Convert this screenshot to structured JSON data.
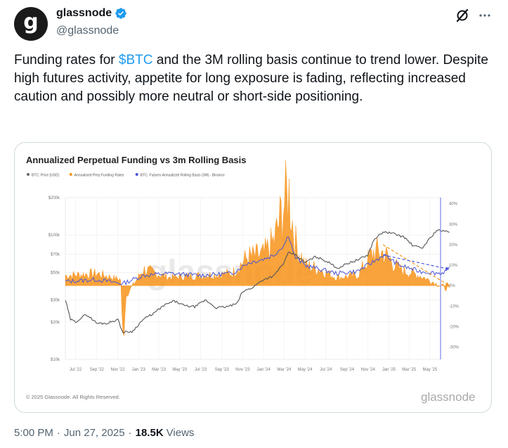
{
  "author": {
    "avatar_letter": "g",
    "display_name": "glassnode",
    "handle": "@glassnode",
    "verified": true
  },
  "icons": {
    "grok": "grok-icon",
    "more": "more-icon",
    "verified": "verified-badge-icon"
  },
  "tweet": {
    "text_before": "Funding rates for ",
    "cashtag": "$BTC",
    "text_after": " and the 3M rolling basis continue to trend lower. Despite high futures activity, appetite for long exposure is fading, reflecting increased caution and possibly more neutral or short-side positioning."
  },
  "media": {
    "copyright": "© 2025 Glassnode. All Rights Reserved.",
    "brand": "glassnode",
    "watermark": "glassnode"
  },
  "chart_data": {
    "type": "line",
    "title": "Annualized Perpetual Funding vs 3m Rolling Basis",
    "legend": [
      {
        "name": "BTC: Price [USD]",
        "color": "#6b6b6b"
      },
      {
        "name": "Annualised Perp Funding Rates",
        "color": "#f7931a"
      },
      {
        "name": "BTC: Futures Annualized Rolling Basis (3M) - Binance",
        "color": "#4a55d8"
      }
    ],
    "legend_position": "top-left",
    "y_left": {
      "scale": "log",
      "ticks": [
        "$200k",
        "$100k",
        "$70k",
        "$50k",
        "$30k",
        "$20k",
        "$10k"
      ],
      "range": [
        10000,
        200000
      ]
    },
    "y_right": {
      "ticks": [
        "40%",
        "30%",
        "20%",
        "10%",
        "0%",
        "-10%",
        "-20%",
        "-30%"
      ],
      "range": [
        -36,
        43
      ]
    },
    "x_ticks": [
      "Jul '22",
      "Sep '22",
      "Nov '22",
      "Jan '23",
      "Mar '23",
      "May '23",
      "Jul '23",
      "Sep '23",
      "Nov '23",
      "Jan '24",
      "Mar '24",
      "May '24",
      "Jul '24",
      "Sep '24",
      "Nov '24",
      "Jan '25",
      "Mar '25",
      "May '25"
    ],
    "x_range": [
      "2022-06",
      "2025-06"
    ],
    "grid": true,
    "series": [
      {
        "name": "BTC: Price [USD]",
        "color": "#555555",
        "x": [
          "2022-06-01",
          "2022-06-15",
          "2022-07-01",
          "2022-08-01",
          "2022-09-01",
          "2022-10-01",
          "2022-11-01",
          "2022-11-15",
          "2022-12-15",
          "2023-01-15",
          "2023-02-15",
          "2023-03-15",
          "2023-04-15",
          "2023-05-15",
          "2023-06-15",
          "2023-07-15",
          "2023-08-15",
          "2023-09-15",
          "2023-10-15",
          "2023-11-01",
          "2023-12-01",
          "2024-01-01",
          "2024-02-01",
          "2024-03-01",
          "2024-03-14",
          "2024-04-01",
          "2024-05-01",
          "2024-06-01",
          "2024-07-01",
          "2024-08-05",
          "2024-09-01",
          "2024-10-01",
          "2024-11-01",
          "2024-11-20",
          "2024-12-17",
          "2025-01-20",
          "2025-02-15",
          "2025-03-10",
          "2025-04-08",
          "2025-05-01",
          "2025-05-22",
          "2025-06-10",
          "2025-06-27"
        ],
        "values": [
          30000,
          21000,
          20000,
          23000,
          19500,
          19500,
          21000,
          16500,
          16800,
          21000,
          23500,
          27000,
          29500,
          27000,
          26500,
          30000,
          26000,
          26500,
          28000,
          35000,
          38000,
          44000,
          47000,
          60000,
          72000,
          70000,
          60000,
          67000,
          62000,
          54000,
          59000,
          63000,
          69000,
          93000,
          106000,
          102000,
          96000,
          83000,
          78000,
          94000,
          110000,
          107000,
          107000
        ]
      },
      {
        "name": "Annualised Perp Funding Rates",
        "color": "#f7931a",
        "x": [
          "2022-06-01",
          "2022-09-01",
          "2022-11-10",
          "2022-11-15",
          "2022-11-25",
          "2023-01-15",
          "2023-04-01",
          "2023-07-01",
          "2023-10-01",
          "2023-11-15",
          "2024-01-01",
          "2024-02-01",
          "2024-03-01",
          "2024-03-14",
          "2024-04-01",
          "2024-05-01",
          "2024-06-15",
          "2024-08-01",
          "2024-10-01",
          "2024-11-20",
          "2024-12-17",
          "2025-02-01",
          "2025-04-01",
          "2025-06-27"
        ],
        "values": [
          5,
          6,
          3,
          -30,
          -5,
          8,
          4,
          5,
          6,
          14,
          15,
          22,
          40,
          47,
          22,
          10,
          8,
          4,
          5,
          17,
          16,
          8,
          5,
          -2
        ]
      },
      {
        "name": "BTC: Futures Annualized Rolling Basis (3M) - Binance",
        "color": "#4a55d8",
        "x": [
          "2022-06-01",
          "2022-09-01",
          "2022-11-15",
          "2023-01-15",
          "2023-04-01",
          "2023-07-01",
          "2023-10-01",
          "2023-11-15",
          "2024-01-01",
          "2024-02-01",
          "2024-03-01",
          "2024-03-14",
          "2024-04-01",
          "2024-05-01",
          "2024-06-15",
          "2024-08-01",
          "2024-10-01",
          "2024-11-20",
          "2024-12-17",
          "2025-02-01",
          "2025-04-01",
          "2025-06-01",
          "2025-06-27"
        ],
        "values": [
          2,
          3,
          1,
          5,
          6,
          5,
          6,
          11,
          13,
          15,
          20,
          25,
          14,
          10,
          8,
          6,
          7,
          12,
          15,
          10,
          7,
          6,
          8
        ]
      }
    ],
    "annotations": [
      {
        "type": "trend-arrow",
        "color": "#f7931a",
        "from": [
          "2024-12-15",
          20
        ],
        "to": [
          "2025-06-27",
          0
        ]
      },
      {
        "type": "trend-arrow",
        "color": "#4a55d8",
        "from": [
          "2024-12-15",
          15
        ],
        "to": [
          "2025-06-27",
          8
        ]
      }
    ]
  },
  "footer": {
    "time": "5:00 PM",
    "date": "Jun 27, 2025",
    "views_count": "18.5K",
    "views_label": "Views"
  }
}
